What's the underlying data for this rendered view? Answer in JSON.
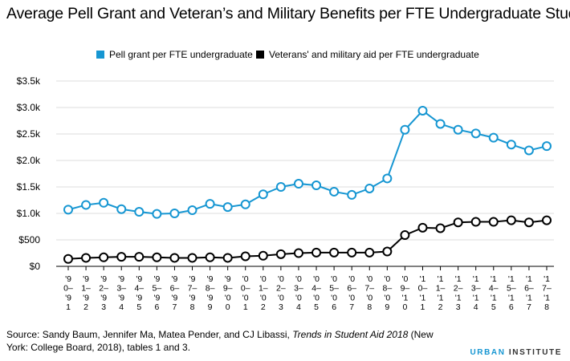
{
  "title": "Average Pell Grant and Veteran’s and Military Benefits per FTE Undergraduate Student",
  "source": {
    "prefix": "Source: Sandy Baum, Jennifer Ma, Matea Pender, and CJ Libassi, ",
    "italic": "Trends in Student Aid 2018",
    "suffix": " (New York: College Board, 2018), tables 1 and 3."
  },
  "brand": {
    "part1": "URBAN",
    "part2": " INSTITUTE"
  },
  "colors": {
    "pell": "#1696d2",
    "vet": "#000000",
    "grid": "#dedede"
  },
  "chart_data": {
    "type": "line",
    "title": "Average Pell Grant and Veteran’s and Military Benefits per FTE Undergraduate Student",
    "xlabel": "",
    "ylabel": "",
    "ylim": [
      0,
      3500
    ],
    "yticks": [
      0,
      500,
      1000,
      1500,
      2000,
      2500,
      3000,
      3500
    ],
    "ytick_labels": [
      "$0",
      "$500",
      "$1.0k",
      "$1.5k",
      "$2.0k",
      "$2.5k",
      "$3.0k",
      "$3.5k"
    ],
    "grid": true,
    "legend_position": "top",
    "categories": [
      [
        "'9",
        "0–",
        "'9",
        "1"
      ],
      [
        "'9",
        "1–",
        "'9",
        "2"
      ],
      [
        "'9",
        "2–",
        "'9",
        "3"
      ],
      [
        "'9",
        "3–",
        "'9",
        "4"
      ],
      [
        "'9",
        "4–",
        "'9",
        "5"
      ],
      [
        "'9",
        "5–",
        "'9",
        "6"
      ],
      [
        "'9",
        "6–",
        "'9",
        "7"
      ],
      [
        "'9",
        "7–",
        "'9",
        "8"
      ],
      [
        "'9",
        "8–",
        "'9",
        "9"
      ],
      [
        "'9",
        "9–",
        "'0",
        "0"
      ],
      [
        "'0",
        "0–",
        "'0",
        "1"
      ],
      [
        "'0",
        "1–",
        "'0",
        "2"
      ],
      [
        "'0",
        "2–",
        "'0",
        "3"
      ],
      [
        "'0",
        "3–",
        "'0",
        "4"
      ],
      [
        "'0",
        "4–",
        "'0",
        "5"
      ],
      [
        "'0",
        "5–",
        "'0",
        "6"
      ],
      [
        "'0",
        "6–",
        "'0",
        "7"
      ],
      [
        "'0",
        "7–",
        "'0",
        "8"
      ],
      [
        "'0",
        "8–",
        "'0",
        "9"
      ],
      [
        "'0",
        "9–",
        "'1",
        "0"
      ],
      [
        "'1",
        "0–",
        "'1",
        "1"
      ],
      [
        "'1",
        "1–",
        "'1",
        "2"
      ],
      [
        "'1",
        "2–",
        "'1",
        "3"
      ],
      [
        "'1",
        "3–",
        "'1",
        "4"
      ],
      [
        "'1",
        "4–",
        "'1",
        "5"
      ],
      [
        "'1",
        "5–",
        "'1",
        "6"
      ],
      [
        "'1",
        "6–",
        "'1",
        "7"
      ],
      [
        "'1",
        "7–",
        "'1",
        "8"
      ]
    ],
    "series": [
      {
        "name": "Pell grant per FTE undergraduate",
        "color": "#1696d2",
        "values": [
          1070,
          1160,
          1200,
          1080,
          1030,
          990,
          1000,
          1060,
          1180,
          1120,
          1170,
          1360,
          1500,
          1560,
          1530,
          1410,
          1350,
          1470,
          1660,
          2580,
          2940,
          2690,
          2580,
          2510,
          2430,
          2300,
          2190,
          2270
        ]
      },
      {
        "name": "Veterans' and military aid per FTE undergraduate",
        "color": "#000000",
        "values": [
          140,
          160,
          170,
          180,
          180,
          170,
          160,
          160,
          170,
          160,
          190,
          200,
          230,
          250,
          260,
          260,
          260,
          260,
          280,
          590,
          730,
          720,
          830,
          840,
          840,
          870,
          830,
          870
        ]
      }
    ]
  }
}
